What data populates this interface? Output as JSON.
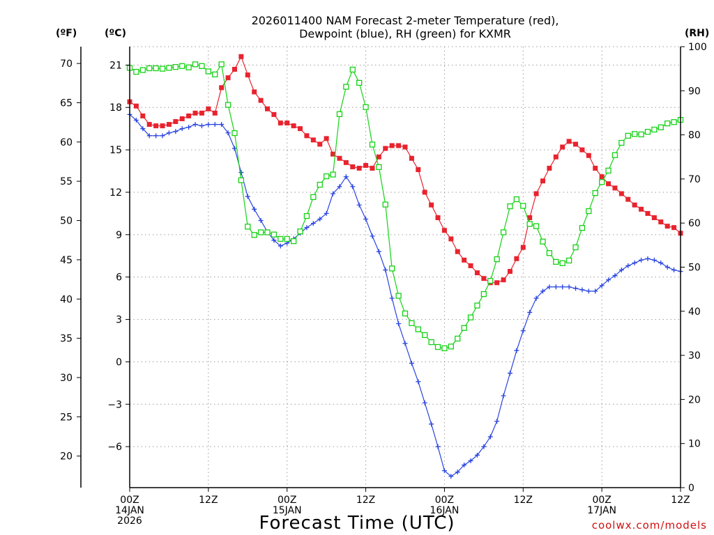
{
  "chart_data": {
    "type": "line",
    "title": [
      "2026011400 NAM Forecast 2-meter Temperature (red),",
      "Dewpoint (blue), RH (green) for KXMR"
    ],
    "xlabel": "Forecast Time (UTC)",
    "credit": "coolwx.com/models",
    "units": {
      "fahrenheit": "(ºF)",
      "celsius": "(ºC)",
      "rh": "(RH)"
    },
    "x_ticks": [
      {
        "hour": 0,
        "lines": [
          "00Z",
          "14JAN",
          "2026"
        ]
      },
      {
        "hour": 12,
        "lines": [
          "12Z"
        ]
      },
      {
        "hour": 24,
        "lines": [
          "00Z",
          "15JAN"
        ]
      },
      {
        "hour": 36,
        "lines": [
          "12Z"
        ]
      },
      {
        "hour": 48,
        "lines": [
          "00Z",
          "16JAN"
        ]
      },
      {
        "hour": 60,
        "lines": [
          "12Z"
        ]
      },
      {
        "hour": 72,
        "lines": [
          "00Z",
          "17JAN"
        ]
      },
      {
        "hour": 84,
        "lines": [
          "12Z"
        ]
      }
    ],
    "xlim": [
      0,
      84
    ],
    "celsius_axis": {
      "ylim": [
        -8.9,
        22.3
      ],
      "ticks": [
        "21",
        "18",
        "15",
        "12",
        "9",
        "6",
        "3",
        "0",
        "−3",
        "−6"
      ]
    },
    "fahrenheit_axis": {
      "ticks": [
        "70",
        "65",
        "60",
        "55",
        "50",
        "45",
        "40",
        "35",
        "30",
        "25",
        "20"
      ]
    },
    "rh_axis": {
      "ylim": [
        0,
        100
      ],
      "ticks": [
        "100",
        "90",
        "80",
        "70",
        "60",
        "50",
        "40",
        "30",
        "20",
        "10",
        "0"
      ]
    },
    "grid": true,
    "series": [
      {
        "name": "Temperature",
        "units": "C",
        "color": "#e8232e",
        "marker": "filled-square",
        "values": [
          18.4,
          18.1,
          17.4,
          16.8,
          16.7,
          16.7,
          16.8,
          17.0,
          17.2,
          17.4,
          17.6,
          17.6,
          17.9,
          17.6,
          19.4,
          20.1,
          20.7,
          21.6,
          20.3,
          19.1,
          18.5,
          17.9,
          17.5,
          16.9,
          16.9,
          16.7,
          16.5,
          16.0,
          15.7,
          15.4,
          15.8,
          14.7,
          14.4,
          14.1,
          13.8,
          13.7,
          13.9,
          13.7,
          14.5,
          15.1,
          15.3,
          15.3,
          15.2,
          14.4,
          13.6,
          12.0,
          11.1,
          10.2,
          9.3,
          8.7,
          7.8,
          7.2,
          6.8,
          6.3,
          5.9,
          5.6,
          5.6,
          5.8,
          6.4,
          7.3,
          8.1,
          10.2,
          11.9,
          12.8,
          13.7,
          14.5,
          15.2,
          15.6,
          15.4,
          15.0,
          14.6,
          13.7,
          13.1,
          12.6,
          12.3,
          11.9,
          11.5,
          11.1,
          10.8,
          10.5,
          10.2,
          9.9,
          9.6,
          9.5,
          9.1
        ]
      },
      {
        "name": "Dewpoint",
        "units": "C",
        "color": "#2944e0",
        "marker": "plus",
        "values": [
          17.5,
          17.1,
          16.5,
          16.0,
          16.0,
          16.0,
          16.2,
          16.3,
          16.5,
          16.6,
          16.8,
          16.7,
          16.8,
          16.8,
          16.8,
          16.2,
          15.1,
          13.4,
          11.7,
          10.8,
          10.0,
          9.2,
          8.6,
          8.2,
          8.4,
          8.7,
          9.1,
          9.5,
          9.8,
          10.1,
          10.5,
          11.9,
          12.4,
          13.1,
          12.4,
          11.1,
          10.1,
          8.9,
          7.8,
          6.5,
          4.5,
          2.7,
          1.3,
          -0.1,
          -1.4,
          -2.9,
          -4.4,
          -6.0,
          -7.7,
          -8.1,
          -7.8,
          -7.3,
          -7.0,
          -6.6,
          -6.0,
          -5.3,
          -4.2,
          -2.4,
          -0.8,
          0.8,
          2.2,
          3.5,
          4.5,
          5.0,
          5.3,
          5.3,
          5.3,
          5.3,
          5.2,
          5.1,
          5.0,
          5.0,
          5.4,
          5.8,
          6.1,
          6.5,
          6.8,
          7.0,
          7.2,
          7.3,
          7.2,
          7.0,
          6.7,
          6.5,
          6.4
        ]
      },
      {
        "name": "RH",
        "units": "%",
        "color": "#14d214",
        "marker": "open-square",
        "values": [
          95.2,
          94.3,
          94.7,
          95.1,
          95.1,
          95.0,
          95.2,
          95.4,
          95.6,
          95.3,
          96.0,
          95.6,
          94.4,
          93.7,
          96.0,
          86.8,
          80.4,
          69.7,
          59.2,
          57.3,
          57.9,
          57.9,
          57.4,
          56.4,
          56.4,
          55.9,
          58.1,
          61.6,
          65.9,
          68.7,
          70.6,
          71.0,
          84.7,
          90.9,
          94.8,
          91.8,
          86.3,
          77.8,
          72.7,
          64.2,
          49.7,
          43.5,
          39.5,
          37.3,
          35.9,
          34.6,
          33.0,
          31.9,
          31.6,
          32.0,
          33.8,
          36.2,
          38.6,
          41.3,
          43.9,
          46.9,
          51.8,
          57.9,
          63.8,
          65.4,
          63.9,
          59.8,
          59.3,
          55.8,
          53.2,
          51.2,
          50.9,
          51.5,
          54.5,
          58.9,
          62.7,
          66.8,
          69.3,
          71.9,
          75.4,
          78.2,
          79.8,
          80.2,
          80.1,
          80.7,
          81.2,
          81.7,
          82.6,
          82.9,
          83.4
        ]
      }
    ]
  }
}
